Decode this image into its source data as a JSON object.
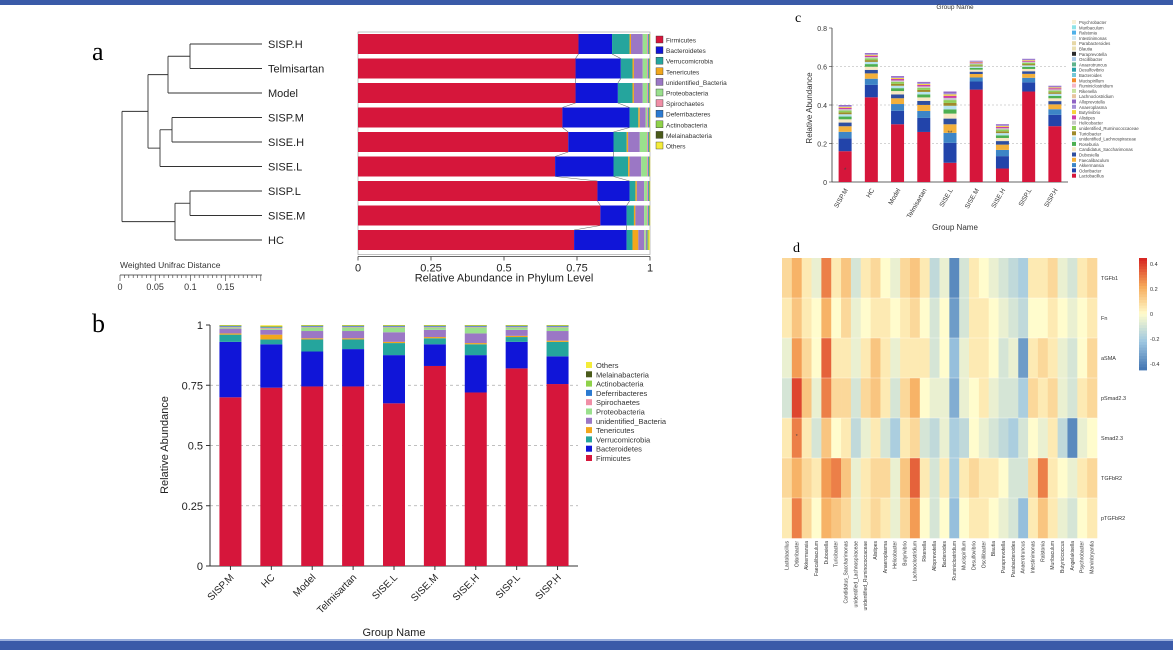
{
  "panels": {
    "a": "a",
    "b": "b",
    "c": "c",
    "d": "d"
  },
  "colors": {
    "Firmicutes": "#d6163b",
    "Bacteroidetes": "#1015d8",
    "Verrucomicrobia": "#25a59d",
    "Tenericutes": "#f2a71c",
    "unidentified_Bacteria": "#9b77c5",
    "Proteobacteria": "#9ae08d",
    "Spirochaetes": "#f08ea6",
    "Deferribacteres": "#2b7ad1",
    "Actinobacteria": "#8fd24a",
    "Melainabacteria": "#4a5a1a",
    "Others": "#f4ec3a"
  },
  "chart_data": [
    {
      "id": "a",
      "type": "bar",
      "orientation": "horizontal-stacked",
      "dendrogram_title": "Weighted Unifrac Distance",
      "dendrogram_ticks": [
        "0",
        "0.05",
        "0.1",
        "0.15"
      ],
      "groups": [
        "SISP.H",
        "Telmisartan",
        "Model",
        "SISP.M",
        "SISE.H",
        "SISE.L",
        "SISP.L",
        "SISE.M",
        "HC"
      ],
      "xlabel": "Relative Abundance in Phylum Level",
      "xticks": [
        "0",
        "0.25",
        "0.5",
        "0.75",
        "1"
      ],
      "legend": [
        "Firmicutes",
        "Bacteroidetes",
        "Verrucomicrobia",
        "Tenericutes",
        "unidentified_Bacteria",
        "Proteobacteria",
        "Spirochaetes",
        "Deferribacteres",
        "Actinobacteria",
        "Melainabacteria",
        "Others"
      ],
      "series": [
        {
          "name": "Firmicutes",
          "values": [
            0.755,
            0.745,
            0.745,
            0.7,
            0.72,
            0.675,
            0.82,
            0.83,
            0.74
          ]
        },
        {
          "name": "Bacteroidetes",
          "values": [
            0.115,
            0.155,
            0.145,
            0.23,
            0.155,
            0.2,
            0.11,
            0.09,
            0.18
          ]
        },
        {
          "name": "Verrucomicrobia",
          "values": [
            0.06,
            0.04,
            0.05,
            0.03,
            0.045,
            0.05,
            0.02,
            0.025,
            0.02
          ]
        },
        {
          "name": "Tenericutes",
          "values": [
            0.005,
            0.005,
            0.005,
            0.005,
            0.005,
            0.005,
            0.005,
            0.005,
            0.02
          ]
        },
        {
          "name": "unidentified_Bacteria",
          "values": [
            0.04,
            0.03,
            0.03,
            0.02,
            0.04,
            0.04,
            0.025,
            0.03,
            0.02
          ]
        },
        {
          "name": "Proteobacteria",
          "values": [
            0.015,
            0.015,
            0.015,
            0.005,
            0.025,
            0.02,
            0.01,
            0.01,
            0.005
          ]
        },
        {
          "name": "Spirochaetes",
          "values": [
            0.003,
            0.003,
            0.003,
            0.003,
            0.003,
            0.003,
            0.003,
            0.003,
            0.003
          ]
        },
        {
          "name": "Deferribacteres",
          "values": [
            0.003,
            0.003,
            0.003,
            0.003,
            0.003,
            0.003,
            0.003,
            0.003,
            0.003
          ]
        },
        {
          "name": "Actinobacteria",
          "values": [
            0.002,
            0.002,
            0.002,
            0.002,
            0.002,
            0.002,
            0.002,
            0.002,
            0.002
          ]
        },
        {
          "name": "Melainabacteria",
          "values": [
            0.001,
            0.001,
            0.001,
            0.001,
            0.001,
            0.001,
            0.001,
            0.001,
            0.001
          ]
        },
        {
          "name": "Others",
          "values": [
            0.001,
            0.001,
            0.001,
            0.001,
            0.001,
            0.001,
            0.001,
            0.001,
            0.005
          ]
        }
      ]
    },
    {
      "id": "b",
      "type": "bar",
      "orientation": "vertical-stacked",
      "categories": [
        "SISP.M",
        "HC",
        "Model",
        "Telmisartan",
        "SISE.L",
        "SISE.M",
        "SISE.H",
        "SISP.L",
        "SISP.H"
      ],
      "xlabel": "Group Name",
      "ylabel": "Relative Abundance",
      "yticks": [
        "0",
        "0.25",
        "0.5",
        "0.75",
        "1"
      ],
      "ylim": [
        0,
        1
      ],
      "legend": [
        "Others",
        "Melainabacteria",
        "Actinobacteria",
        "Deferribacteres",
        "Spirochaetes",
        "Proteobacteria",
        "unidentified_Bacteria",
        "Tenericutes",
        "Verrucomicrobia",
        "Bacteroidetes",
        "Firmicutes"
      ],
      "series": [
        {
          "name": "Firmicutes",
          "values": [
            0.7,
            0.74,
            0.745,
            0.745,
            0.675,
            0.83,
            0.72,
            0.82,
            0.755
          ]
        },
        {
          "name": "Bacteroidetes",
          "values": [
            0.23,
            0.18,
            0.145,
            0.155,
            0.2,
            0.09,
            0.155,
            0.11,
            0.115
          ]
        },
        {
          "name": "Verrucomicrobia",
          "values": [
            0.03,
            0.02,
            0.05,
            0.04,
            0.05,
            0.025,
            0.045,
            0.02,
            0.06
          ]
        },
        {
          "name": "Tenericutes",
          "values": [
            0.005,
            0.02,
            0.005,
            0.005,
            0.005,
            0.005,
            0.005,
            0.005,
            0.005
          ]
        },
        {
          "name": "unidentified_Bacteria",
          "values": [
            0.02,
            0.02,
            0.03,
            0.03,
            0.04,
            0.03,
            0.04,
            0.025,
            0.04
          ]
        },
        {
          "name": "Proteobacteria",
          "values": [
            0.005,
            0.005,
            0.015,
            0.015,
            0.02,
            0.01,
            0.025,
            0.01,
            0.015
          ]
        },
        {
          "name": "Spirochaetes",
          "values": [
            0.003,
            0.003,
            0.003,
            0.003,
            0.003,
            0.003,
            0.003,
            0.003,
            0.003
          ]
        },
        {
          "name": "Deferribacteres",
          "values": [
            0.003,
            0.003,
            0.003,
            0.003,
            0.003,
            0.003,
            0.003,
            0.003,
            0.003
          ]
        },
        {
          "name": "Actinobacteria",
          "values": [
            0.002,
            0.002,
            0.002,
            0.002,
            0.002,
            0.002,
            0.002,
            0.002,
            0.002
          ]
        },
        {
          "name": "Melainabacteria",
          "values": [
            0.001,
            0.001,
            0.001,
            0.001,
            0.001,
            0.001,
            0.001,
            0.001,
            0.001
          ]
        },
        {
          "name": "Others",
          "values": [
            0.001,
            0.005,
            0.001,
            0.001,
            0.001,
            0.001,
            0.001,
            0.001,
            0.001
          ]
        }
      ]
    },
    {
      "id": "c",
      "type": "bar",
      "orientation": "vertical-stacked",
      "top_title": "Group Name",
      "categories": [
        "SISP.M",
        "HC",
        "Model",
        "Telmisartan",
        "SISE.L",
        "SISE.M",
        "SISE.H",
        "SISP.L",
        "SISP.H"
      ],
      "xlabel": "Group Name",
      "ylabel": "Relative Abundance",
      "yticks": [
        "0",
        "0.2",
        "0.4",
        "0.6",
        "0.8"
      ],
      "ylim": [
        0,
        0.8
      ],
      "totals": [
        0.4,
        0.67,
        0.55,
        0.52,
        0.47,
        0.63,
        0.3,
        0.64,
        0.5
      ],
      "base_genus": "Lactobacillus",
      "base_values": [
        0.16,
        0.44,
        0.3,
        0.26,
        0.1,
        0.48,
        0.07,
        0.47,
        0.29
      ],
      "legend": [
        "Psychrobacter",
        "Muribaculum",
        "Ralstonia",
        "Intestinimonas",
        "Parabacteroides",
        "Blautia",
        "Paraprevotella",
        "Oscillibacter",
        "Anaerotruncus",
        "Desulfovibrio",
        "Bacteroides",
        "Mucispirillum",
        "Ruminiclostridium",
        "Rikenella",
        "Lachnoclostridium",
        "Alloprevotella",
        "Anaeroplasma",
        "Butyrivibrio",
        "Alistipes",
        "Helicobacter",
        "unidentified_Ruminococcaceae",
        "Turicibacter",
        "unidentified_Lachnospiraceae",
        "Roseburia",
        "Candidatus_Saccharimonas",
        "Dubosiella",
        "Faecalibaculum",
        "Akkermansia",
        "Odoribacter",
        "Lactobacillus"
      ],
      "legend_colors": [
        "#f7f0d6",
        "#8fe3e6",
        "#4fb0e8",
        "#cfe8f5",
        "#e6d7a6",
        "#eadfb0",
        "#2a2a2a",
        "#a6c6e6",
        "#5fb38b",
        "#28a0a8",
        "#76c7d6",
        "#f28a2a",
        "#f4b7c9",
        "#c7e3a0",
        "#e8c4a0",
        "#8e62c4",
        "#a48ed6",
        "#f5d43a",
        "#cc3fa8",
        "#c9c9c9",
        "#8fcf5a",
        "#9e8a2a",
        "#b7e3f0",
        "#4caf50",
        "#f7e8c3",
        "#2f4f9f",
        "#f3b03a",
        "#3d85c6",
        "#2244aa",
        "#d6163b"
      ],
      "annotations": [
        "*",
        "**"
      ]
    },
    {
      "id": "d",
      "type": "heatmap",
      "rows": [
        "TGFb1",
        "Fn",
        "aSMA",
        "pSmad2.3",
        "Smad2.3",
        "TGFbR2",
        "pTGFbR2"
      ],
      "columns": [
        "Lactobacillus",
        "Odoribacter",
        "Akkermansia",
        "Faecalibaculum",
        "Dubosiella",
        "Turicibacter",
        "Candidatus_Saccharimonas",
        "unidentified_Lachnospiraceae",
        "unidentified_Ruminococcaceae",
        "Alistipes",
        "Anaeroplasma",
        "Helicobacter",
        "Butyrivibrio",
        "Lachnoclostridium",
        "Rikenella",
        "Alloprevotella",
        "Bacteroides",
        "Ruminiclostridium",
        "Mucispirillum",
        "Desulfovibrio",
        "Oscillibacter",
        "Blautia",
        "Paraprevotella",
        "Parabacteroides",
        "Anaerotruncus",
        "Intestinimonas",
        "Ralstonia",
        "Muribaculum",
        "Butyricicoccus",
        "Angelakisella",
        "Psychrobacter",
        "Marvinbryantia"
      ],
      "colorbar_ticks": [
        "0.4",
        "0.2",
        "0",
        "-0.2",
        "-0.4"
      ],
      "range": [
        -0.45,
        0.45
      ],
      "annotations": [
        "*"
      ],
      "values": [
        [
          0.1,
          0.2,
          0.05,
          -0.05,
          0.3,
          0.05,
          0.15,
          -0.1,
          0.05,
          0.1,
          0.0,
          -0.05,
          0.1,
          0.15,
          0.05,
          -0.15,
          -0.05,
          -0.4,
          -0.1,
          0.05,
          0.0,
          -0.05,
          -0.1,
          -0.15,
          -0.2,
          0.05,
          0.05,
          0.1,
          -0.05,
          -0.1,
          0.05,
          0.1
        ],
        [
          0.05,
          0.15,
          0.05,
          0.0,
          0.2,
          0.0,
          0.1,
          -0.05,
          0.0,
          0.05,
          0.05,
          0.0,
          0.05,
          0.1,
          0.0,
          -0.1,
          0.0,
          -0.35,
          -0.1,
          0.05,
          0.05,
          0.0,
          -0.05,
          -0.1,
          -0.15,
          0.0,
          0.0,
          0.05,
          0.0,
          -0.05,
          0.0,
          0.05
        ],
        [
          -0.05,
          0.25,
          0.1,
          0.0,
          0.35,
          0.05,
          0.05,
          -0.05,
          0.05,
          0.15,
          0.05,
          -0.05,
          0.05,
          0.05,
          0.05,
          -0.1,
          0.0,
          -0.25,
          -0.05,
          0.05,
          0.05,
          0.0,
          -0.1,
          -0.05,
          -0.35,
          0.05,
          0.1,
          0.05,
          -0.05,
          -0.1,
          0.0,
          0.1
        ],
        [
          -0.1,
          0.4,
          0.15,
          -0.05,
          0.3,
          0.1,
          0.1,
          -0.1,
          0.1,
          0.15,
          0.05,
          -0.1,
          0.1,
          0.2,
          0.0,
          -0.05,
          -0.05,
          -0.3,
          -0.05,
          0.0,
          0.05,
          -0.05,
          -0.1,
          -0.1,
          -0.2,
          0.1,
          0.05,
          0.1,
          -0.05,
          -0.1,
          0.05,
          0.1
        ],
        [
          0.05,
          0.3,
          0.05,
          -0.1,
          0.15,
          0.0,
          0.05,
          -0.15,
          -0.05,
          0.05,
          -0.1,
          -0.2,
          0.05,
          0.1,
          -0.1,
          -0.15,
          -0.05,
          -0.2,
          -0.15,
          0.0,
          -0.05,
          -0.1,
          -0.15,
          -0.2,
          -0.1,
          0.0,
          -0.05,
          0.05,
          -0.15,
          -0.4,
          -0.05,
          0.0
        ],
        [
          0.1,
          0.2,
          0.1,
          0.05,
          0.25,
          0.3,
          0.15,
          -0.05,
          0.05,
          0.1,
          0.1,
          -0.05,
          0.15,
          0.35,
          0.05,
          -0.1,
          0.05,
          -0.2,
          0.05,
          0.1,
          0.05,
          0.05,
          0.0,
          -0.1,
          -0.1,
          0.1,
          0.3,
          0.05,
          0.0,
          -0.05,
          0.05,
          0.1
        ],
        [
          0.05,
          0.3,
          0.1,
          0.0,
          0.2,
          0.15,
          0.1,
          -0.05,
          0.05,
          0.1,
          0.05,
          -0.05,
          0.1,
          0.25,
          0.0,
          -0.1,
          0.0,
          -0.25,
          0.0,
          0.05,
          0.05,
          0.0,
          -0.05,
          -0.1,
          -0.25,
          0.05,
          0.15,
          0.05,
          -0.05,
          -0.1,
          0.0,
          0.05
        ]
      ]
    }
  ]
}
